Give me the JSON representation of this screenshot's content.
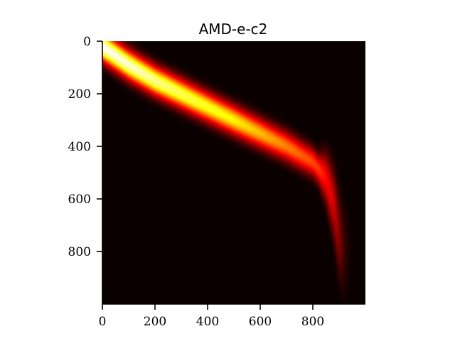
{
  "chart_data": {
    "type": "heatmap",
    "title": "AMD-e-c2",
    "xlabel": "",
    "ylabel": "",
    "xlim": [
      0,
      1000
    ],
    "ylim": [
      0,
      1000
    ],
    "y_inverted": true,
    "x_ticks": [
      0,
      200,
      400,
      600,
      800
    ],
    "y_ticks": [
      0,
      200,
      400,
      600,
      800
    ],
    "colormap": "hot",
    "background_color": "#0b0000",
    "grid": false,
    "legend": "none",
    "band_center": [
      {
        "x": 0,
        "y": 20
      },
      {
        "x": 100,
        "y": 90
      },
      {
        "x": 200,
        "y": 150
      },
      {
        "x": 300,
        "y": 200
      },
      {
        "x": 400,
        "y": 250
      },
      {
        "x": 500,
        "y": 300
      },
      {
        "x": 600,
        "y": 350
      },
      {
        "x": 700,
        "y": 400
      },
      {
        "x": 800,
        "y": 460
      },
      {
        "x": 850,
        "y": 520
      },
      {
        "x": 880,
        "y": 620
      },
      {
        "x": 900,
        "y": 740
      },
      {
        "x": 920,
        "y": 800
      }
    ],
    "peak_intensity": [
      {
        "x": 0,
        "value": 1.0
      },
      {
        "x": 100,
        "value": 0.95
      },
      {
        "x": 300,
        "value": 0.82
      },
      {
        "x": 500,
        "value": 0.72
      },
      {
        "x": 700,
        "value": 0.55
      },
      {
        "x": 820,
        "value": 0.45
      },
      {
        "x": 880,
        "value": 0.3
      },
      {
        "x": 920,
        "value": 0.08
      }
    ]
  }
}
